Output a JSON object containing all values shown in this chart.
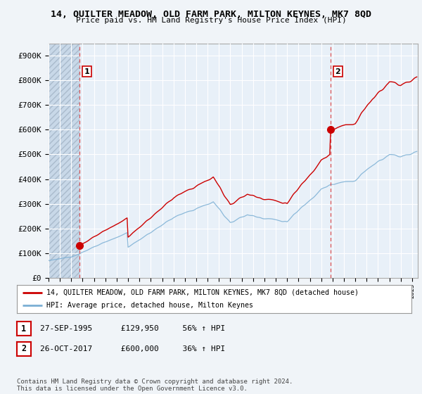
{
  "title_line1": "14, QUILTER MEADOW, OLD FARM PARK, MILTON KEYNES, MK7 8QD",
  "title_line2": "Price paid vs. HM Land Registry's House Price Index (HPI)",
  "ylabel_ticks": [
    "£0",
    "£100K",
    "£200K",
    "£300K",
    "£400K",
    "£500K",
    "£600K",
    "£700K",
    "£800K",
    "£900K"
  ],
  "ytick_values": [
    0,
    100000,
    200000,
    300000,
    400000,
    500000,
    600000,
    700000,
    800000,
    900000
  ],
  "ylim": [
    0,
    950000
  ],
  "xlim_start": 1993.0,
  "xlim_end": 2025.5,
  "sale1_x": 1995.74,
  "sale1_y": 129950,
  "sale2_x": 2017.82,
  "sale2_y": 600000,
  "legend_line1": "14, QUILTER MEADOW, OLD FARM PARK, MILTON KEYNES, MK7 8QD (detached house)",
  "legend_line2": "HPI: Average price, detached house, Milton Keynes",
  "line1_color": "#cc0000",
  "line2_color": "#7bafd4",
  "table_row1": [
    "1",
    "27-SEP-1995",
    "£129,950",
    "56% ↑ HPI"
  ],
  "table_row2": [
    "2",
    "26-OCT-2017",
    "£600,000",
    "36% ↑ HPI"
  ],
  "footnote": "Contains HM Land Registry data © Crown copyright and database right 2024.\nThis data is licensed under the Open Government Licence v3.0.",
  "background_color": "#f0f4f8",
  "plot_bg_color": "#e8f0f8",
  "hatch_color": "#c8d8e8"
}
